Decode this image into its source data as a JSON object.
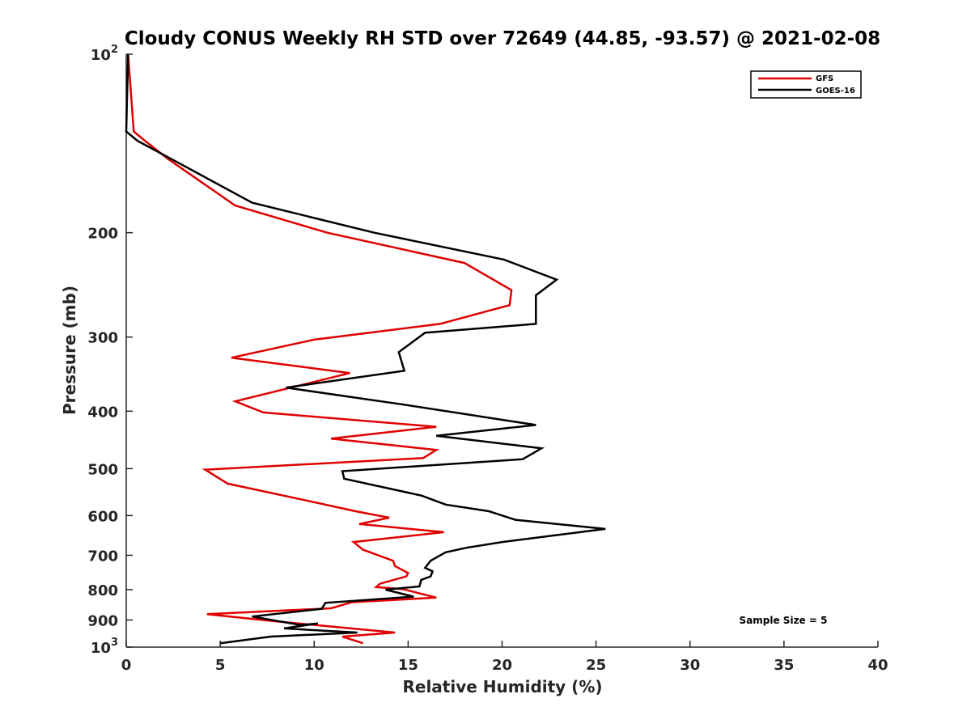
{
  "chart_data": {
    "type": "line",
    "title": "Cloudy CONUS Weekly RH STD over 72649 (44.85, -93.57) @ 2021-02-08",
    "xlabel": "Relative Humidity (%)",
    "ylabel": "Pressure (mb)",
    "xlim": [
      0,
      40
    ],
    "ylim": [
      1000,
      100
    ],
    "y_scale": "log",
    "y_reversed": true,
    "grid": false,
    "legend_placement": "top-right",
    "x_ticks": [
      0,
      5,
      10,
      15,
      20,
      25,
      30,
      35,
      40
    ],
    "x_tick_labels": [
      "0",
      "5",
      "10",
      "15",
      "20",
      "25",
      "30",
      "35",
      "40"
    ],
    "y_ticks": [
      100,
      200,
      300,
      400,
      500,
      600,
      700,
      800,
      900,
      1000
    ],
    "y_tick_labels": [
      "10^2",
      "200",
      "300",
      "400",
      "500",
      "600",
      "700",
      "800",
      "900",
      "10^3"
    ],
    "series": [
      {
        "name": "GFS",
        "color": "#e00000",
        "points": [
          [
            0.1,
            100
          ],
          [
            0.4,
            135
          ],
          [
            1.0,
            140
          ],
          [
            2.2,
            150
          ],
          [
            5.8,
            180
          ],
          [
            10.7,
            200
          ],
          [
            18.0,
            225
          ],
          [
            20.5,
            250
          ],
          [
            20.4,
            265
          ],
          [
            16.7,
            285
          ],
          [
            10.0,
            303
          ],
          [
            5.6,
            325
          ],
          [
            11.9,
            345
          ],
          [
            5.8,
            385
          ],
          [
            7.3,
            402
          ],
          [
            16.5,
            425
          ],
          [
            10.9,
            445
          ],
          [
            16.5,
            465
          ],
          [
            15.8,
            480
          ],
          [
            4.2,
            502
          ],
          [
            5.4,
            530
          ],
          [
            9.5,
            565
          ],
          [
            12.2,
            590
          ],
          [
            14.0,
            605
          ],
          [
            12.4,
            620
          ],
          [
            16.9,
            640
          ],
          [
            12.1,
            665
          ],
          [
            12.6,
            685
          ],
          [
            14.2,
            715
          ],
          [
            14.3,
            730
          ],
          [
            15.0,
            750
          ],
          [
            14.9,
            760
          ],
          [
            13.5,
            782
          ],
          [
            13.3,
            792
          ],
          [
            14.7,
            798
          ],
          [
            16.5,
            825
          ],
          [
            12.0,
            840
          ],
          [
            10.9,
            860
          ],
          [
            4.3,
            880
          ],
          [
            8.0,
            905
          ],
          [
            14.3,
            945
          ],
          [
            11.5,
            960
          ],
          [
            12.6,
            985
          ]
        ]
      },
      {
        "name": "GOES-16",
        "color": "#000000",
        "points": [
          [
            0.1,
            100
          ],
          [
            0.0,
            135
          ],
          [
            0.6,
            140
          ],
          [
            2.7,
            152
          ],
          [
            6.7,
            178
          ],
          [
            13.2,
            200
          ],
          [
            20.1,
            222
          ],
          [
            22.9,
            240
          ],
          [
            21.8,
            255
          ],
          [
            21.8,
            285
          ],
          [
            15.9,
            295
          ],
          [
            14.5,
            318
          ],
          [
            14.8,
            342
          ],
          [
            8.5,
            365
          ],
          [
            14.8,
            390
          ],
          [
            21.8,
            422
          ],
          [
            16.5,
            440
          ],
          [
            22.1,
            462
          ],
          [
            21.1,
            482
          ],
          [
            11.5,
            505
          ],
          [
            11.6,
            520
          ],
          [
            15.7,
            555
          ],
          [
            17.0,
            575
          ],
          [
            19.3,
            590
          ],
          [
            20.7,
            610
          ],
          [
            25.5,
            632
          ],
          [
            20.0,
            665
          ],
          [
            18.1,
            680
          ],
          [
            17.0,
            692
          ],
          [
            16.2,
            715
          ],
          [
            15.9,
            735
          ],
          [
            16.3,
            745
          ],
          [
            16.2,
            760
          ],
          [
            15.7,
            770
          ],
          [
            15.6,
            790
          ],
          [
            13.8,
            800
          ],
          [
            15.3,
            822
          ],
          [
            10.6,
            842
          ],
          [
            10.4,
            862
          ],
          [
            6.7,
            888
          ],
          [
            9.3,
            918
          ],
          [
            10.2,
            912
          ],
          [
            8.4,
            930
          ],
          [
            12.3,
            945
          ],
          [
            7.7,
            960
          ],
          [
            5.0,
            985
          ]
        ]
      }
    ],
    "annotations": [
      {
        "text": "Sample Size = 5",
        "placement": "bottom-right"
      }
    ]
  }
}
